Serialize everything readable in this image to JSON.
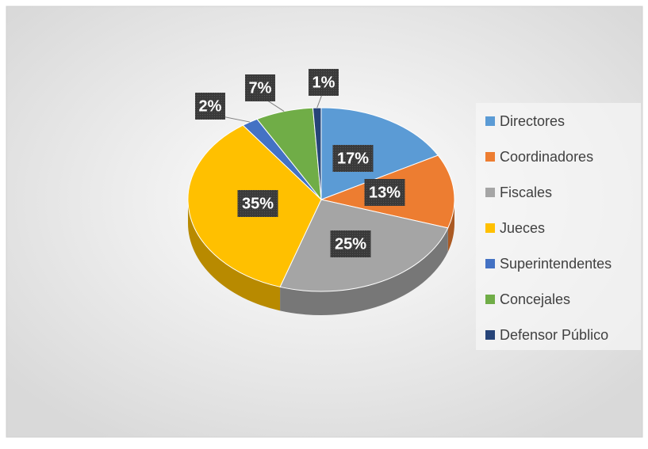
{
  "chart_data": {
    "type": "pie",
    "categories": [
      "Directores",
      "Coordinadores",
      "Fiscales",
      "Jueces",
      "Superintendentes",
      "Concejales",
      "Defensor Público"
    ],
    "values": [
      17,
      13,
      25,
      35,
      2,
      7,
      1
    ],
    "value_labels": [
      "17%",
      "13%",
      "25%",
      "35%",
      "2%",
      "7%",
      "1%"
    ],
    "colors": [
      "#5b9bd5",
      "#ed7d31",
      "#a5a5a5",
      "#ffc000",
      "#4472c4",
      "#70ad47",
      "#264478"
    ],
    "legend": "right"
  }
}
